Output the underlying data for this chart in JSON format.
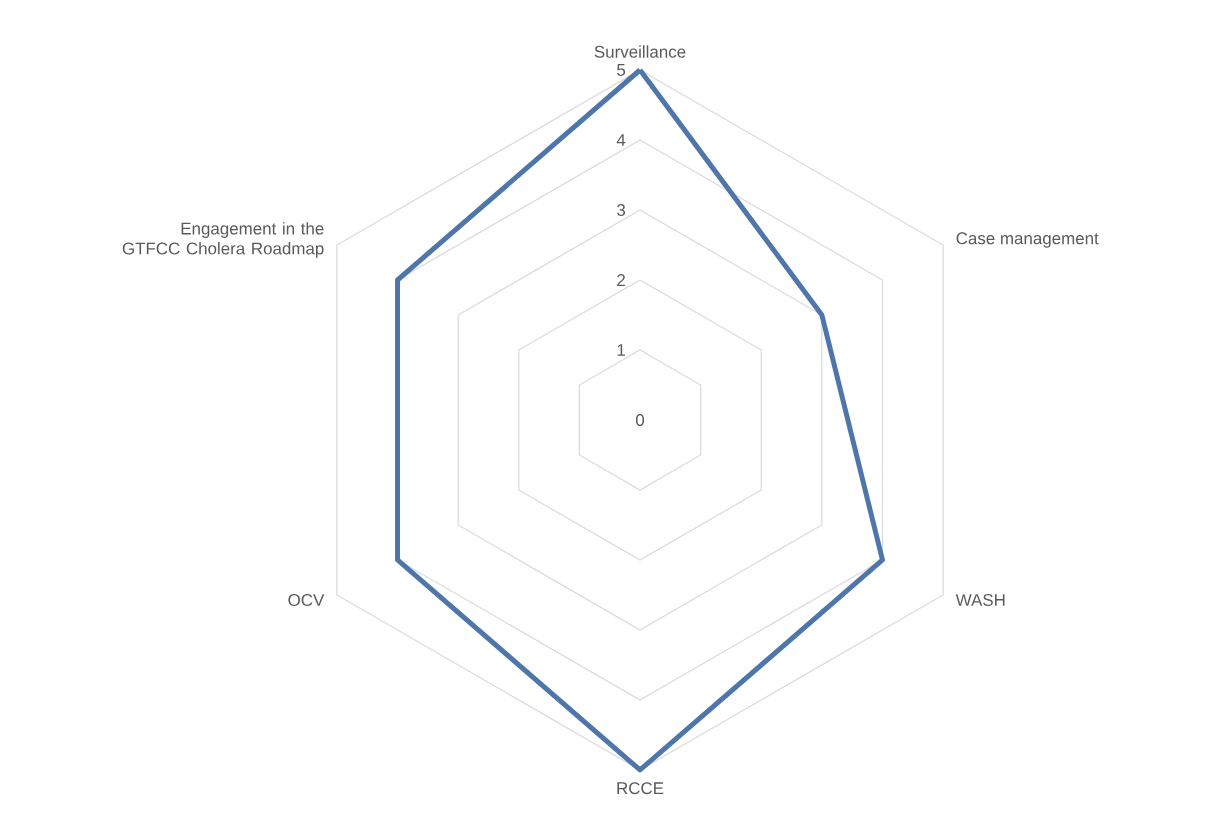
{
  "chart_data": {
    "type": "radar",
    "categories": [
      "Surveillance",
      "Case management",
      "WASH",
      "RCCE",
      "OCV",
      "Engagement in the GTFCC Cholera Roadmap"
    ],
    "series": [
      {
        "color": "#4f76aa",
        "values": [
          5,
          3,
          4,
          5,
          4,
          4
        ]
      }
    ],
    "ylim": [
      0,
      5
    ],
    "yticks": [
      0,
      1,
      2,
      3,
      4,
      5
    ],
    "grid": true
  }
}
